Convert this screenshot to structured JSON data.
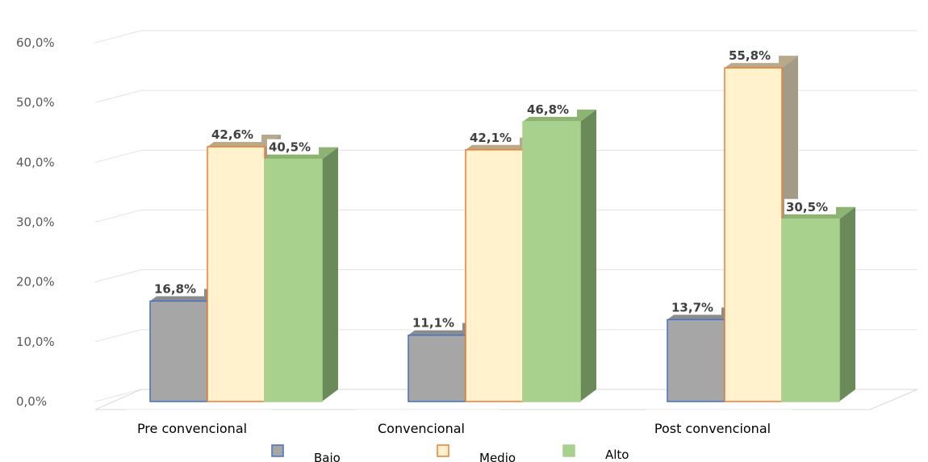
{
  "chart_data": {
    "type": "bar",
    "categories": [
      "Pre convencional",
      "Convencional",
      "Post convencional"
    ],
    "series": [
      {
        "name": "Bajo",
        "values": [
          16.8,
          11.1,
          13.7
        ],
        "labels": [
          "16,8%",
          "11,1%",
          "13,7%"
        ],
        "color": "#a6a6a6",
        "edge": "#4472c4",
        "side": "#7f7f7f",
        "top": "#8c8c8c"
      },
      {
        "name": "Medio",
        "values": [
          42.6,
          42.1,
          55.8
        ],
        "labels": [
          "42,6%",
          "42,1%",
          "55,8%"
        ],
        "color": "#fff2cc",
        "edge": "#ed7d31",
        "side": "#a39b85",
        "top": "#b8a98a"
      },
      {
        "name": "Alto",
        "values": [
          40.5,
          46.8,
          30.5
        ],
        "labels": [
          "40,5%",
          "46,8%",
          "30,5%"
        ],
        "color": "#a9d18e",
        "edge": "#a9d18e",
        "side": "#6b8a5a",
        "top": "#8db473"
      }
    ],
    "yticks": [
      "0,0%",
      "10,0%",
      "20,0%",
      "30,0%",
      "40,0%",
      "50,0%",
      "60,0%"
    ],
    "ylim": [
      0,
      60
    ],
    "grid": true,
    "legend_position": "bottom",
    "style": "3d-clustered-column"
  }
}
